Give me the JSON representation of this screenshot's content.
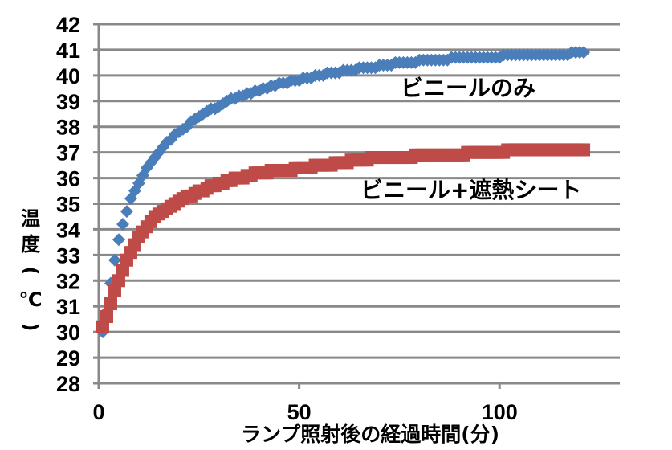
{
  "chart_data": {
    "type": "scatter",
    "title": "",
    "xlabel": "ランプ照射後の経過時間(分)",
    "ylabel_chars": [
      "温",
      "度",
      "(",
      "℃",
      ")"
    ],
    "ylabel": "温度(℃)",
    "xlim": [
      0,
      130
    ],
    "ylim": [
      28,
      42
    ],
    "xticks": [
      "0",
      "50",
      "100"
    ],
    "xtick_values": [
      0,
      50,
      100
    ],
    "yticks": [
      "28",
      "29",
      "30",
      "31",
      "32",
      "33",
      "34",
      "35",
      "36",
      "37",
      "38",
      "39",
      "40",
      "41",
      "42"
    ],
    "grid": "horizontal",
    "legend": "none",
    "x_start": 1,
    "x_step": 1,
    "series": [
      {
        "name": "ビニールのみ",
        "marker": "diamond",
        "color": "#4a7ebb",
        "values": [
          30.0,
          30.8,
          31.9,
          32.8,
          33.6,
          34.2,
          34.7,
          35.2,
          35.5,
          35.8,
          36.1,
          36.4,
          36.6,
          36.8,
          37.0,
          37.2,
          37.4,
          37.5,
          37.7,
          37.8,
          37.9,
          38.0,
          38.2,
          38.3,
          38.4,
          38.5,
          38.6,
          38.7,
          38.7,
          38.8,
          38.9,
          39.0,
          39.1,
          39.1,
          39.2,
          39.2,
          39.3,
          39.3,
          39.4,
          39.4,
          39.5,
          39.5,
          39.6,
          39.6,
          39.7,
          39.7,
          39.7,
          39.8,
          39.8,
          39.8,
          39.9,
          39.9,
          39.9,
          40.0,
          40.0,
          40.0,
          40.1,
          40.1,
          40.1,
          40.1,
          40.2,
          40.2,
          40.2,
          40.2,
          40.3,
          40.3,
          40.3,
          40.3,
          40.3,
          40.4,
          40.4,
          40.4,
          40.4,
          40.5,
          40.5,
          40.5,
          40.5,
          40.5,
          40.5,
          40.6,
          40.6,
          40.6,
          40.6,
          40.6,
          40.6,
          40.6,
          40.6,
          40.7,
          40.7,
          40.7,
          40.7,
          40.7,
          40.7,
          40.7,
          40.7,
          40.7,
          40.7,
          40.7,
          40.7,
          40.7,
          40.8,
          40.8,
          40.8,
          40.8,
          40.8,
          40.8,
          40.8,
          40.8,
          40.8,
          40.8,
          40.8,
          40.8,
          40.8,
          40.8,
          40.8,
          40.8,
          40.8,
          40.9,
          40.9,
          40.9,
          40.9
        ]
      },
      {
        "name": "ビニール+遮熱シート",
        "marker": "square",
        "color": "#be4b48",
        "values": [
          30.2,
          30.6,
          31.1,
          31.6,
          32.0,
          32.4,
          32.8,
          33.1,
          33.4,
          33.7,
          33.9,
          34.1,
          34.3,
          34.5,
          34.6,
          34.7,
          34.8,
          34.9,
          35.0,
          35.1,
          35.2,
          35.3,
          35.3,
          35.4,
          35.5,
          35.5,
          35.6,
          35.7,
          35.7,
          35.8,
          35.8,
          35.9,
          35.9,
          36.0,
          36.0,
          36.0,
          36.1,
          36.1,
          36.2,
          36.2,
          36.2,
          36.2,
          36.3,
          36.3,
          36.3,
          36.3,
          36.3,
          36.3,
          36.4,
          36.4,
          36.4,
          36.4,
          36.4,
          36.5,
          36.5,
          36.5,
          36.5,
          36.5,
          36.6,
          36.6,
          36.6,
          36.6,
          36.7,
          36.7,
          36.7,
          36.7,
          36.7,
          36.8,
          36.8,
          36.8,
          36.8,
          36.8,
          36.8,
          36.8,
          36.8,
          36.8,
          36.8,
          36.8,
          36.9,
          36.9,
          36.9,
          36.9,
          36.9,
          36.9,
          36.9,
          36.9,
          36.9,
          36.9,
          36.9,
          36.9,
          36.9,
          37.0,
          37.0,
          37.0,
          37.0,
          37.0,
          37.0,
          37.0,
          37.0,
          37.0,
          37.0,
          37.1,
          37.1,
          37.1,
          37.1,
          37.1,
          37.1,
          37.1,
          37.1,
          37.1,
          37.1,
          37.1,
          37.1,
          37.1,
          37.1,
          37.1,
          37.1,
          37.1,
          37.1,
          37.1,
          37.1
        ]
      }
    ],
    "annotations": [
      "ビニールのみ",
      "ビニール+遮熱シート"
    ]
  }
}
